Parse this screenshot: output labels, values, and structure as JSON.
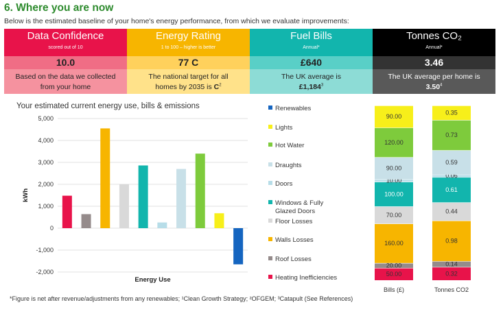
{
  "section": {
    "title": "6. Where you are now",
    "subtitle": "Below is the estimated baseline of your home's energy performance, from which we evaluate improvements:"
  },
  "cards": [
    {
      "title": "Data Confidence",
      "sub": "scored out of 10",
      "value": "10.0",
      "desc_line1": "Based on the data we collected",
      "desc_line2_text": "from your home",
      "desc_line2_suffix": "",
      "colors": {
        "head": "#e8134a",
        "head_text": "#ffffff",
        "val": "#f06d85",
        "val_text": "#222222",
        "desc": "#f5929f",
        "desc_text": "#222222"
      }
    },
    {
      "title": "Energy Rating",
      "sub": "1 to 100 – higher is better",
      "value": "77 C",
      "desc_line1": "The national target for all",
      "desc_line2_text": "homes by 2035 is ",
      "desc_line2_bold": "C",
      "desc_line2_suffix": "2",
      "colors": {
        "head": "#f7b500",
        "head_text": "#ffffff",
        "val": "#ffd15c",
        "val_text": "#222222",
        "desc": "#ffe28a",
        "desc_text": "#222222"
      }
    },
    {
      "title": "Fuel Bills",
      "sub": "Annual*",
      "value": "£640",
      "desc_line1": "The UK average is",
      "desc_line2_text": "",
      "desc_line2_bold": "£1,184",
      "desc_line2_suffix": "3",
      "colors": {
        "head": "#12b5ad",
        "head_text": "#ffffff",
        "val": "#59cfc7",
        "val_text": "#222222",
        "desc": "#8ddcd6",
        "desc_text": "#222222"
      }
    },
    {
      "title": "Tonnes CO₂",
      "sub": "Annual*",
      "value": "3.46",
      "desc_line1": "The UK average per home is",
      "desc_line2_text": "",
      "desc_line2_bold": "3.50",
      "desc_line2_suffix": "4",
      "colors": {
        "head": "#000000",
        "head_text": "#ffffff",
        "val": "#333333",
        "val_text": "#ffffff",
        "desc": "#595959",
        "desc_text": "#ffffff"
      }
    }
  ],
  "chart_data": [
    {
      "type": "bar",
      "title": "Your estimated current energy use, bills & emissions",
      "xlabel": "Energy Use",
      "ylabel": "kWh",
      "ylim": [
        -2000,
        5000
      ],
      "yticks": [
        "-2,000",
        "-1,000",
        "0",
        "1,000",
        "2,000",
        "3,000",
        "4,000",
        "5,000"
      ],
      "categories": [
        "Heating Inefficiencies",
        "Roof Losses",
        "Walls Losses",
        "Floor Losses",
        "Windows & Fully Glazed Doors",
        "Doors",
        "Draughts",
        "Hot Water",
        "Lights",
        "Renewables"
      ],
      "values": [
        1480,
        640,
        4550,
        2000,
        2860,
        260,
        2700,
        3400,
        680,
        -1650
      ],
      "colors": [
        "#e8134a",
        "#958b8b",
        "#f7b500",
        "#d9d9d9",
        "#12b5ad",
        "#b7dde8",
        "#c8e0e8",
        "#7ecb3c",
        "#f7ef1a",
        "#1565c0"
      ]
    },
    {
      "type": "stacked-bar",
      "legend": [
        "Renewables",
        "Lights",
        "Hot Water",
        "Draughts",
        "Doors",
        "Windows & Fully Glazed Doors",
        "Floor Losses",
        "Walls Losses",
        "Roof Losses",
        "Heating Inefficiencies"
      ],
      "legend_colors": [
        "#1565c0",
        "#f7ef1a",
        "#7ecb3c",
        "#c8e0e8",
        "#b7dde8",
        "#12b5ad",
        "#d9d9d9",
        "#f7b500",
        "#958b8b",
        "#e8134a"
      ],
      "stack_order": [
        "Heating Inefficiencies",
        "Roof Losses",
        "Walls Losses",
        "Floor Losses",
        "Windows & Fully Glazed Doors",
        "Doors",
        "Draughts",
        "Hot Water",
        "Lights"
      ],
      "stack_colors": [
        "#e8134a",
        "#958b8b",
        "#f7b500",
        "#d9d9d9",
        "#12b5ad",
        "#b7dde8",
        "#c8e0e8",
        "#7ecb3c",
        "#f7ef1a"
      ],
      "series": [
        {
          "name": "Bills (£)",
          "values": [
            50,
            20,
            160,
            70,
            100,
            10,
            90,
            120,
            90
          ],
          "labels": [
            "50.00",
            "20.00",
            "160.00",
            "70.00",
            "100.00",
            "10.00",
            "90.00",
            "120.00",
            "90.00"
          ]
        },
        {
          "name": "Tonnes CO2",
          "values": [
            0.32,
            0.14,
            0.98,
            0.44,
            0.61,
            0.06,
            0.59,
            0.73,
            0.35
          ],
          "labels": [
            "0.32",
            "0.14",
            "0.98",
            "0.44",
            "0.61",
            "0.06",
            "0.59",
            "0.73",
            "0.35"
          ]
        }
      ]
    }
  ],
  "footnote": "*Figure is net after revenue/adjustments from any renewables;   ¹Clean Growth Strategy; ²OFGEM; ³Catapult (See References)"
}
